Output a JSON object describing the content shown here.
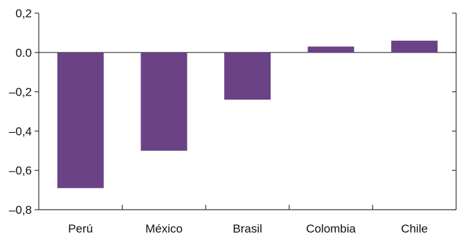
{
  "chart_data": {
    "type": "bar",
    "categories": [
      "Perú",
      "México",
      "Brasil",
      "Colombia",
      "Chile"
    ],
    "values": [
      -0.69,
      -0.5,
      -0.24,
      0.03,
      0.06
    ],
    "ylim": [
      -0.8,
      0.2
    ],
    "yticks": [
      0.2,
      0.0,
      -0.2,
      -0.4,
      -0.6,
      -0.8
    ],
    "ytick_labels": [
      "0,2",
      "0.0",
      "–0,2",
      "–0,4",
      "–0,6",
      "–0,8"
    ],
    "grid": false,
    "colors": {
      "bar": "#6a4285"
    }
  }
}
